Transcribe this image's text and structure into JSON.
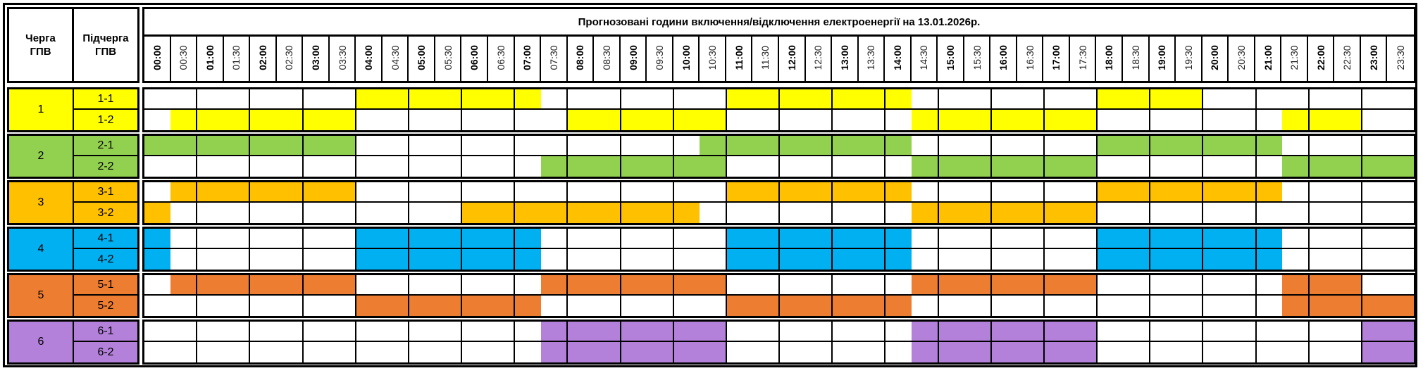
{
  "header": {
    "queue_label": "Черга ГПВ",
    "subqueue_label": "Підчерга ГПВ",
    "title": "Прогнозовані години включення/відключення електроенергії на 13.01.2026р.",
    "times": [
      "00:00",
      "00:30",
      "01:00",
      "01:30",
      "02:00",
      "02:30",
      "03:00",
      "03:30",
      "04:00",
      "04:30",
      "05:00",
      "05:30",
      "06:00",
      "06:30",
      "07:00",
      "07:30",
      "08:00",
      "08:30",
      "09:00",
      "09:30",
      "10:00",
      "10:30",
      "11:00",
      "11:30",
      "12:00",
      "12:30",
      "13:00",
      "13:30",
      "14:00",
      "14:30",
      "15:00",
      "15:30",
      "16:00",
      "16:30",
      "17:00",
      "17:30",
      "18:00",
      "18:30",
      "19:00",
      "19:30",
      "20:00",
      "20:30",
      "21:00",
      "21:30",
      "22:00",
      "22:30",
      "23:00",
      "23:30"
    ]
  },
  "groups": [
    {
      "number": "1",
      "color": "#ffff00",
      "subqueues": [
        {
          "label": "1-1",
          "slots": "000000001111111000000011111110000000111100000000"
        },
        {
          "label": "1-2",
          "slots": "011111110000000011111100000001111111000000011100"
        }
      ]
    },
    {
      "number": "2",
      "color": "#92d050",
      "subqueues": [
        {
          "label": "2-1",
          "slots": "111111110000000000000111111110000000111111100000"
        },
        {
          "label": "2-2",
          "slots": "000000000000000111111100000001111111000000011111"
        }
      ]
    },
    {
      "number": "3",
      "color": "#ffc000",
      "subqueues": [
        {
          "label": "3-1",
          "slots": "011111110000000000000011111110000000111111100000"
        },
        {
          "label": "3-2",
          "slots": "100000000000111111111000000001111111000000000000"
        }
      ]
    },
    {
      "number": "4",
      "color": "#00b0f0",
      "subqueues": [
        {
          "label": "4-1",
          "slots": "100000001111111000000011111110000000111111100000"
        },
        {
          "label": "4-2",
          "slots": "100000001111111000000011111110000000111111100000"
        }
      ]
    },
    {
      "number": "5",
      "color": "#ed7d31",
      "subqueues": [
        {
          "label": "5-1",
          "slots": "011111110000000111111100000001111111000000011100"
        },
        {
          "label": "5-2",
          "slots": "000000001111111000000011111110000000000000011111"
        }
      ]
    },
    {
      "number": "6",
      "color": "#b381da",
      "subqueues": [
        {
          "label": "6-1",
          "slots": "000000000000000111111100000001111111000000000011"
        },
        {
          "label": "6-2",
          "slots": "000000000000000111111100000001111111000000000011"
        }
      ]
    }
  ]
}
